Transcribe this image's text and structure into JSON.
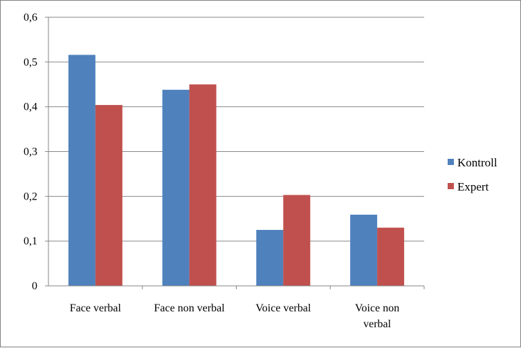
{
  "chart_data": {
    "type": "bar",
    "title": "",
    "xlabel": "",
    "ylabel": "",
    "ylim": [
      0,
      0.6
    ],
    "yticks": [
      0,
      0.1,
      0.2,
      0.3,
      0.4,
      0.5,
      0.6
    ],
    "ytick_labels": [
      "0",
      "0,1",
      "0,2",
      "0,3",
      "0,4",
      "0,5",
      "0,6"
    ],
    "grid": true,
    "legend_position": "right",
    "categories": [
      [
        "Face verbal"
      ],
      [
        "Face non verbal"
      ],
      [
        "Voice verbal"
      ],
      [
        "Voice non",
        "verbal"
      ]
    ],
    "series": [
      {
        "name": "Kontroll",
        "color": "#4f81bd",
        "values": [
          0.516,
          0.438,
          0.125,
          0.159
        ]
      },
      {
        "name": "Expert",
        "color": "#c0504d",
        "values": [
          0.404,
          0.45,
          0.203,
          0.13
        ]
      }
    ]
  }
}
